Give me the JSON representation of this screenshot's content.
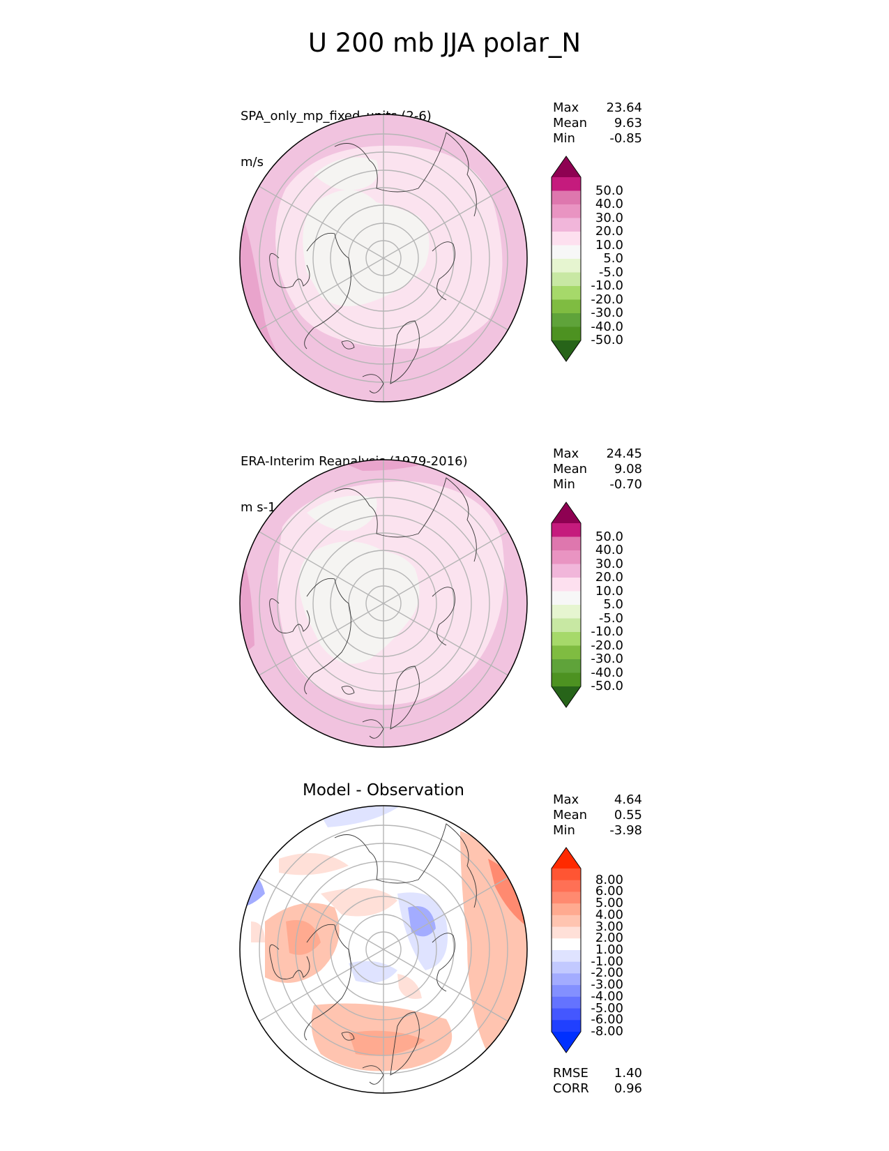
{
  "main_title": "U 200 mb JJA polar_N",
  "panels": [
    {
      "title": "SPA_only_mp_fixed_units (2-6)",
      "units": "m/s",
      "stats": [
        {
          "label": "Max",
          "value": "23.64"
        },
        {
          "label": "Mean",
          "value": "9.63"
        },
        {
          "label": "Min",
          "value": "-0.85"
        }
      ]
    },
    {
      "title": "ERA-Interim Reanalysis (1979-2016)",
      "units": "m s-1",
      "stats": [
        {
          "label": "Max",
          "value": "24.45"
        },
        {
          "label": "Mean",
          "value": "9.08"
        },
        {
          "label": "Min",
          "value": "-0.70"
        }
      ]
    },
    {
      "title": "Model - Observation",
      "stats": [
        {
          "label": "Max",
          "value": "4.64"
        },
        {
          "label": "Mean",
          "value": "0.55"
        },
        {
          "label": "Min",
          "value": "-3.98"
        }
      ],
      "metrics": [
        {
          "label": "RMSE",
          "value": "1.40"
        },
        {
          "label": "CORR",
          "value": "0.96"
        }
      ]
    }
  ],
  "colorbars": {
    "field": {
      "labels": [
        "50.0",
        "40.0",
        "30.0",
        "20.0",
        "10.0",
        "5.0",
        "-5.0",
        "-10.0",
        "-20.0",
        "-30.0",
        "-40.0",
        "-50.0"
      ],
      "colors": [
        "#8e0152",
        "#c51b7d",
        "#de77ae",
        "#e994c2",
        "#f1b6da",
        "#fde0ef",
        "#f7f7f7",
        "#e6f5d0",
        "#c8e8a3",
        "#a6d96a",
        "#7fbc41",
        "#5fa33a",
        "#4d9221",
        "#276419"
      ]
    },
    "diff": {
      "labels": [
        "8.00",
        "6.00",
        "5.00",
        "4.00",
        "3.00",
        "2.00",
        "1.00",
        "-1.00",
        "-2.00",
        "-3.00",
        "-4.00",
        "-5.00",
        "-6.00",
        "-8.00"
      ],
      "colors": [
        "#ff2a00",
        "#ff5533",
        "#ff7055",
        "#ff8a70",
        "#ffaa90",
        "#ffc4b0",
        "#ffe0d8",
        "#ffffff",
        "#dfe3ff",
        "#c2c9ff",
        "#a3acff",
        "#8390ff",
        "#6473ff",
        "#4457ff",
        "#2040ff",
        "#0030ff"
      ]
    }
  },
  "chart_data": [
    {
      "type": "heatmap",
      "projection": "north polar stereographic",
      "title": "SPA_only_mp_fixed_units (2-6)",
      "units": "m/s",
      "contour_levels": [
        -50,
        -40,
        -30,
        -20,
        -10,
        -5,
        5,
        10,
        20,
        30,
        40,
        50
      ],
      "max": 23.64,
      "mean": 9.63,
      "min": -0.85
    },
    {
      "type": "heatmap",
      "projection": "north polar stereographic",
      "title": "ERA-Interim Reanalysis (1979-2016)",
      "units": "m s-1",
      "contour_levels": [
        -50,
        -40,
        -30,
        -20,
        -10,
        -5,
        5,
        10,
        20,
        30,
        40,
        50
      ],
      "max": 24.45,
      "mean": 9.08,
      "min": -0.7
    },
    {
      "type": "heatmap",
      "projection": "north polar stereographic",
      "title": "Model - Observation",
      "contour_levels": [
        -8,
        -6,
        -5,
        -4,
        -3,
        -2,
        -1,
        1,
        2,
        3,
        4,
        5,
        6,
        8
      ],
      "max": 4.64,
      "mean": 0.55,
      "min": -3.98,
      "rmse": 1.4,
      "corr": 0.96
    }
  ]
}
